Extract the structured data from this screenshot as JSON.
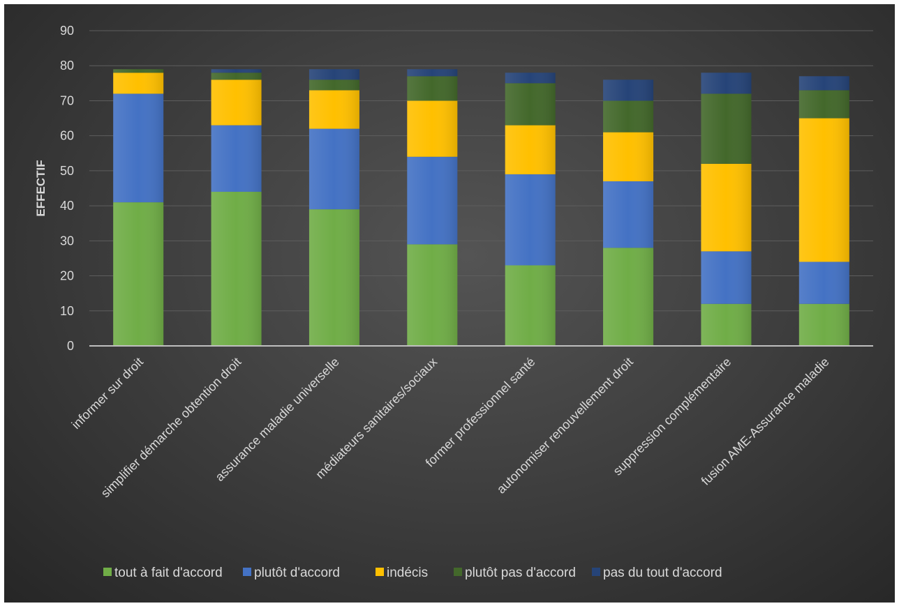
{
  "chart_data": {
    "type": "bar",
    "stacked": true,
    "title": "",
    "xlabel": "",
    "ylabel": "EFFECTIF",
    "ylim": [
      0,
      90
    ],
    "yticks": [
      0,
      10,
      20,
      30,
      40,
      50,
      60,
      70,
      80,
      90
    ],
    "grid": true,
    "legend_position": "bottom",
    "categories": [
      "informer sur droit",
      "simplifier démarche obtention droit",
      "assurance maladie universelle",
      "médiateurs sanitaires/sociaux",
      "former professionnel santé",
      "autonomiser renouvellement droit",
      "suppression complémentaire",
      "fusion AME-Assurance maladie"
    ],
    "series": [
      {
        "name": "tout à fait d'accord",
        "color": "#70ad47",
        "values": [
          41,
          44,
          39,
          29,
          23,
          28,
          12,
          12
        ]
      },
      {
        "name": "plutôt d'accord",
        "color": "#4472c4",
        "values": [
          31,
          19,
          23,
          25,
          26,
          19,
          15,
          12
        ]
      },
      {
        "name": "indécis",
        "color": "#ffc000",
        "values": [
          6,
          13,
          11,
          16,
          14,
          14,
          25,
          41
        ]
      },
      {
        "name": "plutôt pas d'accord",
        "color": "#43682b",
        "values": [
          1,
          2,
          3,
          7,
          12,
          9,
          20,
          8
        ]
      },
      {
        "name": "pas du tout d'accord",
        "color": "#264478",
        "values": [
          0,
          1,
          3,
          2,
          3,
          6,
          6,
          4
        ]
      }
    ]
  }
}
